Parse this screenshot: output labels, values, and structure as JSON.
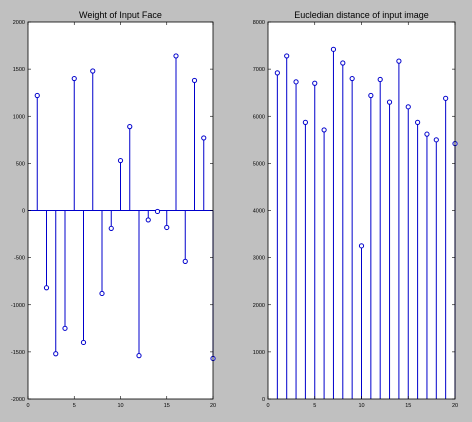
{
  "chart_data": [
    {
      "type": "stem",
      "title": "Weight of Input Face",
      "xlim": [
        0,
        20
      ],
      "ylim": [
        -2000,
        2000
      ],
      "x_ticks": [
        0,
        5,
        10,
        15,
        20
      ],
      "y_ticks": [
        -2000,
        -1500,
        -1000,
        -500,
        0,
        500,
        1000,
        1500,
        2000
      ],
      "baseline": 0,
      "x": [
        1,
        2,
        3,
        4,
        5,
        6,
        7,
        8,
        9,
        10,
        11,
        12,
        13,
        14,
        15,
        16,
        17,
        18,
        19,
        20
      ],
      "values": [
        1220,
        -820,
        -1520,
        -1250,
        1400,
        -1400,
        1480,
        -880,
        -190,
        530,
        890,
        -1540,
        -100,
        -10,
        -180,
        1640,
        -540,
        1380,
        770,
        -1570
      ],
      "grid": false,
      "color": "#0000cc"
    },
    {
      "type": "stem",
      "title": "Eucledian distance of input image",
      "xlim": [
        0,
        20
      ],
      "ylim": [
        0,
        8000
      ],
      "x_ticks": [
        0,
        5,
        10,
        15,
        20
      ],
      "y_ticks": [
        0,
        1000,
        2000,
        3000,
        4000,
        5000,
        6000,
        7000,
        8000
      ],
      "baseline": 0,
      "x": [
        1,
        2,
        3,
        4,
        5,
        6,
        7,
        8,
        9,
        10,
        11,
        12,
        13,
        14,
        15,
        16,
        17,
        18,
        19,
        20
      ],
      "values": [
        6920,
        7280,
        6730,
        5870,
        6700,
        5710,
        7420,
        7130,
        6800,
        3250,
        6440,
        6780,
        6300,
        7170,
        6200,
        5870,
        5620,
        5500,
        6380,
        5420
      ],
      "grid": false,
      "color": "#0000cc"
    }
  ]
}
